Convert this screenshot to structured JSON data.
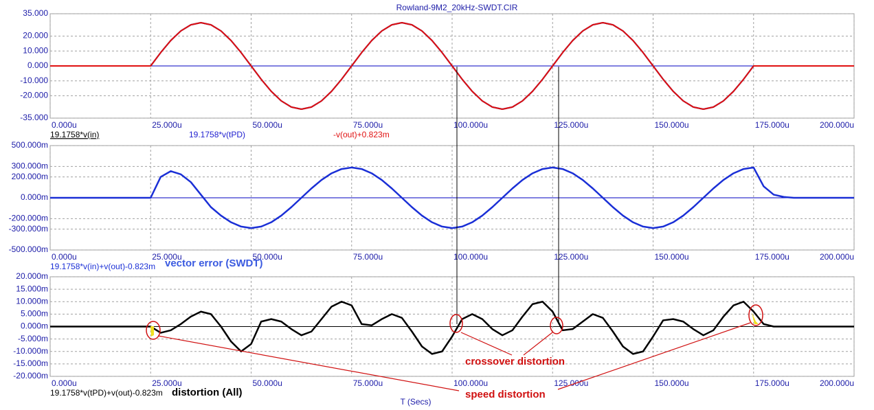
{
  "chart_data": [
    {
      "type": "line",
      "title": "Rowland-9M2_20kHz-SWDT.CIR",
      "x": [
        0,
        2.5,
        5,
        7.5,
        10,
        12.5,
        15,
        17.5,
        20,
        22.5,
        25,
        27.5,
        30,
        32.5,
        35,
        37.5,
        40,
        42.5,
        45,
        47.5,
        50,
        52.5,
        55,
        57.5,
        60,
        62.5,
        65,
        67.5,
        70,
        72.5,
        75,
        77.5,
        80,
        82.5,
        85,
        87.5,
        90,
        92.5,
        95,
        97.5,
        100,
        102.5,
        105,
        107.5,
        110,
        112.5,
        115,
        117.5,
        120,
        122.5,
        125,
        127.5,
        130,
        132.5,
        135,
        137.5,
        140,
        142.5,
        145,
        147.5,
        150,
        152.5,
        155,
        157.5,
        160,
        162.5,
        165,
        167.5,
        170,
        172.5,
        175,
        177.5,
        180,
        182.5,
        185,
        187.5,
        190,
        192.5,
        195,
        197.5,
        200
      ],
      "xlim": [
        0,
        200
      ],
      "xticks": [
        {
          "value": 0,
          "label": "0.000u"
        },
        {
          "value": 25,
          "label": "25.000u"
        },
        {
          "value": 50,
          "label": "50.000u"
        },
        {
          "value": 75,
          "label": "75.000u"
        },
        {
          "value": 100,
          "label": "100.000u"
        },
        {
          "value": 125,
          "label": "125.000u"
        },
        {
          "value": 150,
          "label": "150.000u"
        },
        {
          "value": 175,
          "label": "175.000u"
        },
        {
          "value": 200,
          "label": "200.000u"
        }
      ],
      "ylim": [
        -35,
        35
      ],
      "yticks": [
        {
          "value": 35,
          "label": "35.000"
        },
        {
          "value": 20,
          "label": "20.000"
        },
        {
          "value": 10,
          "label": "10.000"
        },
        {
          "value": 0,
          "label": "0.000"
        },
        {
          "value": -10,
          "label": "-10.000"
        },
        {
          "value": -20,
          "label": "-20.000"
        },
        {
          "value": -35,
          "label": "-35.000"
        }
      ],
      "grid": true,
      "zeroline_color": "#0000c0",
      "series": [
        {
          "name": "19.1758*v(in)",
          "color": "#000000",
          "values": [
            0,
            0,
            0,
            0,
            0,
            0,
            0,
            0,
            0,
            0,
            0,
            8.96,
            17.05,
            23.46,
            27.58,
            29,
            27.58,
            23.46,
            17.05,
            8.96,
            0,
            -8.96,
            -17.05,
            -23.46,
            -27.58,
            -29,
            -27.58,
            -23.46,
            -17.05,
            -8.96,
            0,
            8.96,
            17.05,
            23.46,
            27.58,
            29,
            27.58,
            23.46,
            17.05,
            8.96,
            0,
            -8.96,
            -17.05,
            -23.46,
            -27.58,
            -29,
            -27.58,
            -23.46,
            -17.05,
            -8.96,
            0,
            8.96,
            17.05,
            23.46,
            27.58,
            29,
            27.58,
            23.46,
            17.05,
            8.96,
            0,
            -8.96,
            -17.05,
            -23.46,
            -27.58,
            -29,
            -27.58,
            -23.46,
            -17.05,
            -8.96,
            0,
            0,
            0,
            0,
            0,
            0,
            0,
            0,
            0,
            0,
            0
          ]
        },
        {
          "name": "19.1758*v(tPD)",
          "color": "#2020d0",
          "values": [
            0,
            0,
            0,
            0,
            0,
            0,
            0,
            0,
            0,
            0,
            0,
            8.96,
            17.05,
            23.46,
            27.58,
            29,
            27.58,
            23.46,
            17.05,
            8.96,
            0,
            -8.96,
            -17.05,
            -23.46,
            -27.58,
            -29,
            -27.58,
            -23.46,
            -17.05,
            -8.96,
            0,
            8.96,
            17.05,
            23.46,
            27.58,
            29,
            27.58,
            23.46,
            17.05,
            8.96,
            0,
            -8.96,
            -17.05,
            -23.46,
            -27.58,
            -29,
            -27.58,
            -23.46,
            -17.05,
            -8.96,
            0,
            8.96,
            17.05,
            23.46,
            27.58,
            29,
            27.58,
            23.46,
            17.05,
            8.96,
            0,
            -8.96,
            -17.05,
            -23.46,
            -27.58,
            -29,
            -27.58,
            -23.46,
            -17.05,
            -8.96,
            0,
            0,
            0,
            0,
            0,
            0,
            0,
            0,
            0,
            0,
            0
          ]
        },
        {
          "name": "-v(out)+0.823m",
          "color": "#e01010",
          "values": [
            0,
            0,
            0,
            0,
            0,
            0,
            0,
            0,
            0,
            0,
            0,
            8.96,
            17.05,
            23.46,
            27.58,
            29,
            27.58,
            23.46,
            17.05,
            8.96,
            0,
            -8.96,
            -17.05,
            -23.46,
            -27.58,
            -29,
            -27.58,
            -23.46,
            -17.05,
            -8.96,
            0,
            8.96,
            17.05,
            23.46,
            27.58,
            29,
            27.58,
            23.46,
            17.05,
            8.96,
            0,
            -8.96,
            -17.05,
            -23.46,
            -27.58,
            -29,
            -27.58,
            -23.46,
            -17.05,
            -8.96,
            0,
            8.96,
            17.05,
            23.46,
            27.58,
            29,
            27.58,
            23.46,
            17.05,
            8.96,
            0,
            -8.96,
            -17.05,
            -23.46,
            -27.58,
            -29,
            -27.58,
            -23.46,
            -17.05,
            -8.96,
            0,
            0,
            0,
            0,
            0,
            0,
            0,
            0,
            0,
            0,
            0
          ]
        }
      ]
    },
    {
      "type": "line",
      "annotation": "vector error (SWDT)",
      "x": [
        0,
        2.5,
        5,
        7.5,
        10,
        12.5,
        15,
        17.5,
        20,
        22.5,
        25,
        27.5,
        30,
        32.5,
        35,
        37.5,
        40,
        42.5,
        45,
        47.5,
        50,
        52.5,
        55,
        57.5,
        60,
        62.5,
        65,
        67.5,
        70,
        72.5,
        75,
        77.5,
        80,
        82.5,
        85,
        87.5,
        90,
        92.5,
        95,
        97.5,
        100,
        102.5,
        105,
        107.5,
        110,
        112.5,
        115,
        117.5,
        120,
        122.5,
        125,
        127.5,
        130,
        132.5,
        135,
        137.5,
        140,
        142.5,
        145,
        147.5,
        150,
        152.5,
        155,
        157.5,
        160,
        162.5,
        165,
        167.5,
        170,
        172.5,
        175,
        177.5,
        180,
        182.5,
        185,
        187.5,
        190,
        192.5,
        195,
        197.5,
        200
      ],
      "xlim": [
        0,
        200
      ],
      "xticks": [
        {
          "value": 0,
          "label": "0.000u"
        },
        {
          "value": 25,
          "label": "25.000u"
        },
        {
          "value": 50,
          "label": "50.000u"
        },
        {
          "value": 75,
          "label": "75.000u"
        },
        {
          "value": 100,
          "label": "100.000u"
        },
        {
          "value": 125,
          "label": "125.000u"
        },
        {
          "value": 150,
          "label": "150.000u"
        },
        {
          "value": 175,
          "label": "175.000u"
        },
        {
          "value": 200,
          "label": "200.000u"
        }
      ],
      "ylim": [
        -500,
        500
      ],
      "yticks": [
        {
          "value": 500,
          "label": "500.000m"
        },
        {
          "value": 300,
          "label": "300.000m"
        },
        {
          "value": 200,
          "label": "200.000m"
        },
        {
          "value": 0,
          "label": "0.000m"
        },
        {
          "value": -200,
          "label": "-200.000m"
        },
        {
          "value": -300,
          "label": "-300.000m"
        },
        {
          "value": -500,
          "label": "-500.000m"
        }
      ],
      "grid": true,
      "zeroline_color": "#0000c0",
      "series": [
        {
          "name": "19.1758*v(in)+v(out)-0.823m",
          "color": "#1a2fd6",
          "values": [
            0,
            0,
            0,
            0,
            0,
            0,
            0,
            0,
            0,
            0,
            0,
            200,
            255,
            225,
            150,
            30,
            -89.6,
            -170.5,
            -234.6,
            -275.8,
            -290,
            -275.8,
            -234.6,
            -170.5,
            -89.6,
            0,
            89.6,
            170.5,
            234.6,
            275.8,
            290,
            275.8,
            234.6,
            170.5,
            89.6,
            0,
            -89.6,
            -170.5,
            -234.6,
            -275.8,
            -290,
            -275.8,
            -234.6,
            -170.5,
            -89.6,
            0,
            89.6,
            170.5,
            234.6,
            275.8,
            290,
            275.8,
            234.6,
            170.5,
            89.6,
            0,
            -89.6,
            -170.5,
            -234.6,
            -275.8,
            -290,
            -275.8,
            -234.6,
            -170.5,
            -89.6,
            0,
            89.6,
            170.5,
            234.6,
            275.8,
            290,
            110,
            30,
            8,
            0,
            0,
            0,
            0,
            0,
            0,
            0
          ]
        }
      ]
    },
    {
      "type": "line",
      "annotations": [
        "distortion (All)",
        "crossover distortion",
        "speed distortion"
      ],
      "xlabel": "T (Secs)",
      "x": [
        0,
        2.5,
        5,
        7.5,
        10,
        12.5,
        15,
        17.5,
        20,
        22.5,
        25,
        27.5,
        30,
        32.5,
        35,
        37.5,
        40,
        42.5,
        45,
        47.5,
        50,
        52.5,
        55,
        57.5,
        60,
        62.5,
        65,
        67.5,
        70,
        72.5,
        75,
        77.5,
        80,
        82.5,
        85,
        87.5,
        90,
        92.5,
        95,
        97.5,
        100,
        102.5,
        105,
        107.5,
        110,
        112.5,
        115,
        117.5,
        120,
        122.5,
        125,
        127.5,
        130,
        132.5,
        135,
        137.5,
        140,
        142.5,
        145,
        147.5,
        150,
        152.5,
        155,
        157.5,
        160,
        162.5,
        165,
        167.5,
        170,
        172.5,
        175,
        177.5,
        180,
        182.5,
        185,
        187.5,
        190,
        192.5,
        195,
        197.5,
        200
      ],
      "xlim": [
        0,
        200
      ],
      "xticks": [
        {
          "value": 0,
          "label": "0.000u"
        },
        {
          "value": 25,
          "label": "25.000u"
        },
        {
          "value": 50,
          "label": "50.000u"
        },
        {
          "value": 75,
          "label": "75.000u"
        },
        {
          "value": 100,
          "label": "100.000u"
        },
        {
          "value": 125,
          "label": "125.000u"
        },
        {
          "value": 150,
          "label": "150.000u"
        },
        {
          "value": 175,
          "label": "175.000u"
        },
        {
          "value": 200,
          "label": "200.000u"
        }
      ],
      "ylim": [
        -20,
        20
      ],
      "yticks": [
        {
          "value": 20,
          "label": "20.000m"
        },
        {
          "value": 15,
          "label": "15.000m"
        },
        {
          "value": 10,
          "label": "10.000m"
        },
        {
          "value": 5,
          "label": "5.000m"
        },
        {
          "value": 0,
          "label": "0.000m"
        },
        {
          "value": -5,
          "label": "-5.000m"
        },
        {
          "value": -10,
          "label": "-10.000m"
        },
        {
          "value": -15,
          "label": "-15.000m"
        },
        {
          "value": -20,
          "label": "-20.000m"
        }
      ],
      "grid": true,
      "zeroline_color": "#000000",
      "series": [
        {
          "name": "19.1758*v(tPD)+v(out)-0.823m",
          "color": "#000000",
          "values": [
            0,
            0,
            0,
            0,
            0,
            0,
            0,
            0,
            0,
            0,
            0,
            -2.5,
            -1.5,
            1,
            4,
            6,
            5,
            0,
            -6,
            -10,
            -7,
            2,
            3,
            2,
            -1,
            -3.5,
            -2,
            3,
            8,
            10,
            8.5,
            1,
            0.5,
            3,
            5,
            3.5,
            -2,
            -8,
            -11,
            -10,
            -4,
            3,
            5,
            3,
            -1,
            -3.5,
            -1.5,
            4,
            9,
            10,
            6,
            -1.5,
            -1,
            2,
            5,
            3.5,
            -2,
            -8,
            -11,
            -10,
            -4,
            2.5,
            3,
            2,
            -1,
            -3.5,
            -1.5,
            4,
            8.5,
            10,
            6,
            1,
            0,
            0,
            0,
            0,
            0,
            0,
            0,
            0,
            0
          ]
        }
      ]
    }
  ]
}
